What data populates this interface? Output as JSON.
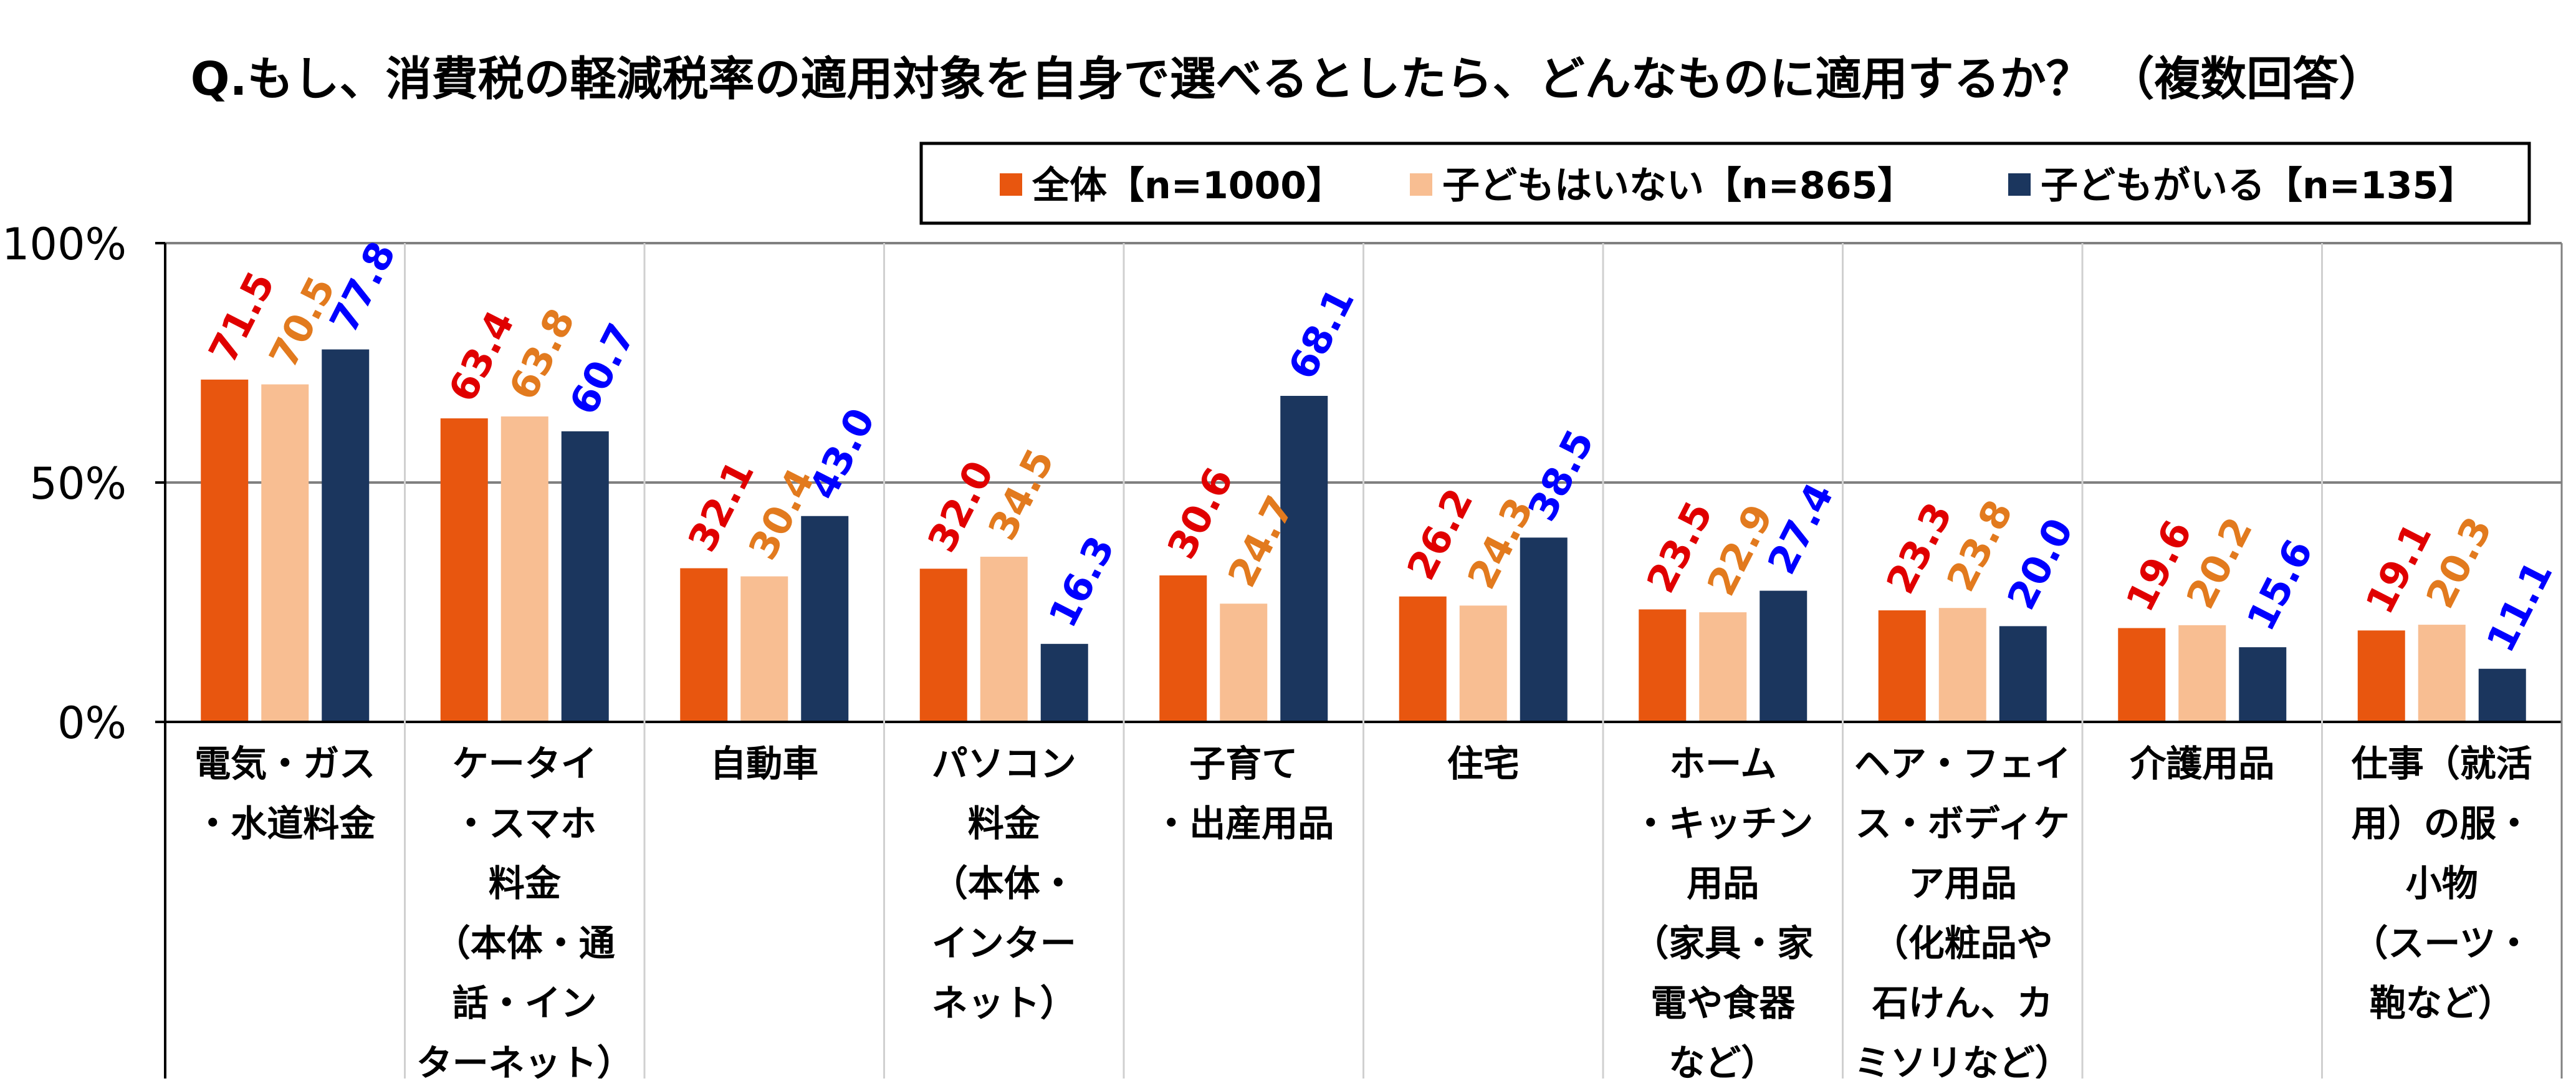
{
  "title": "Q.もし、消費税の軽減税率の適用対象を自身で選べるとしたら、どんなものに適用するか？ （複数回答）",
  "colors": {
    "series": [
      "#E8560F",
      "#F8BE92",
      "#1B365E"
    ],
    "labels": [
      "#E00000",
      "#E27A1E",
      "#0000FF"
    ],
    "axis": "#000000",
    "grid": "#808080"
  },
  "legend": {
    "placement": "top-right",
    "boxed": true
  },
  "chart_data": {
    "type": "bar",
    "title": "Q.もし、消費税の軽減税率の適用対象を自身で選べるとしたら、どんなものに適用するか？ （複数回答）",
    "ylim": [
      0,
      100
    ],
    "yticks": [
      "0%",
      "50%",
      "100%"
    ],
    "ytick_values": [
      0,
      50,
      100
    ],
    "grid": true,
    "categories": [
      [
        "電気・ガス",
        "・水道料金"
      ],
      [
        "ケータイ",
        "・スマホ",
        "料金",
        "（本体・通",
        "話・イン",
        "ターネット）"
      ],
      [
        "自動車"
      ],
      [
        "パソコン",
        "料金",
        "（本体・",
        "インター",
        "ネット）"
      ],
      [
        "子育て",
        "・出産用品"
      ],
      [
        "住宅"
      ],
      [
        "ホーム",
        "・キッチン",
        "用品",
        "（家具・家",
        "電や食器",
        "など）"
      ],
      [
        "ヘア・フェイ",
        "ス・ボディケ",
        "ア用品",
        "（化粧品や",
        "石けん、カ",
        "ミソリなど）"
      ],
      [
        "介護用品"
      ],
      [
        "仕事（就活",
        "用）の服・",
        "小物",
        "（スーツ・",
        "鞄など）"
      ]
    ],
    "series": [
      {
        "name": "全体【n=1000】",
        "values": [
          71.5,
          63.4,
          32.1,
          32.0,
          30.6,
          26.2,
          23.5,
          23.3,
          19.6,
          19.1
        ],
        "labels": [
          "71.5",
          "63.4",
          "32.1",
          "32.0",
          "30.6",
          "26.2",
          "23.5",
          "23.3",
          "19.6",
          "19.1"
        ]
      },
      {
        "name": "子どもはいない【n=865】",
        "values": [
          70.5,
          63.8,
          30.4,
          34.5,
          24.7,
          24.3,
          22.9,
          23.8,
          20.2,
          20.3
        ],
        "labels": [
          "70.5",
          "63.8",
          "30.4",
          "34.5",
          "24.7",
          "24.3",
          "22.9",
          "23.8",
          "20.2",
          "20.3"
        ]
      },
      {
        "name": "子どもがいる【n=135】",
        "values": [
          77.8,
          60.7,
          43.0,
          16.3,
          68.1,
          38.5,
          27.4,
          20.0,
          15.6,
          11.1
        ],
        "labels": [
          "77.8",
          "60.7",
          "43.0",
          "16.3",
          "68.1",
          "38.5",
          "27.4",
          "20.0",
          "15.6",
          "11.1"
        ]
      }
    ]
  }
}
